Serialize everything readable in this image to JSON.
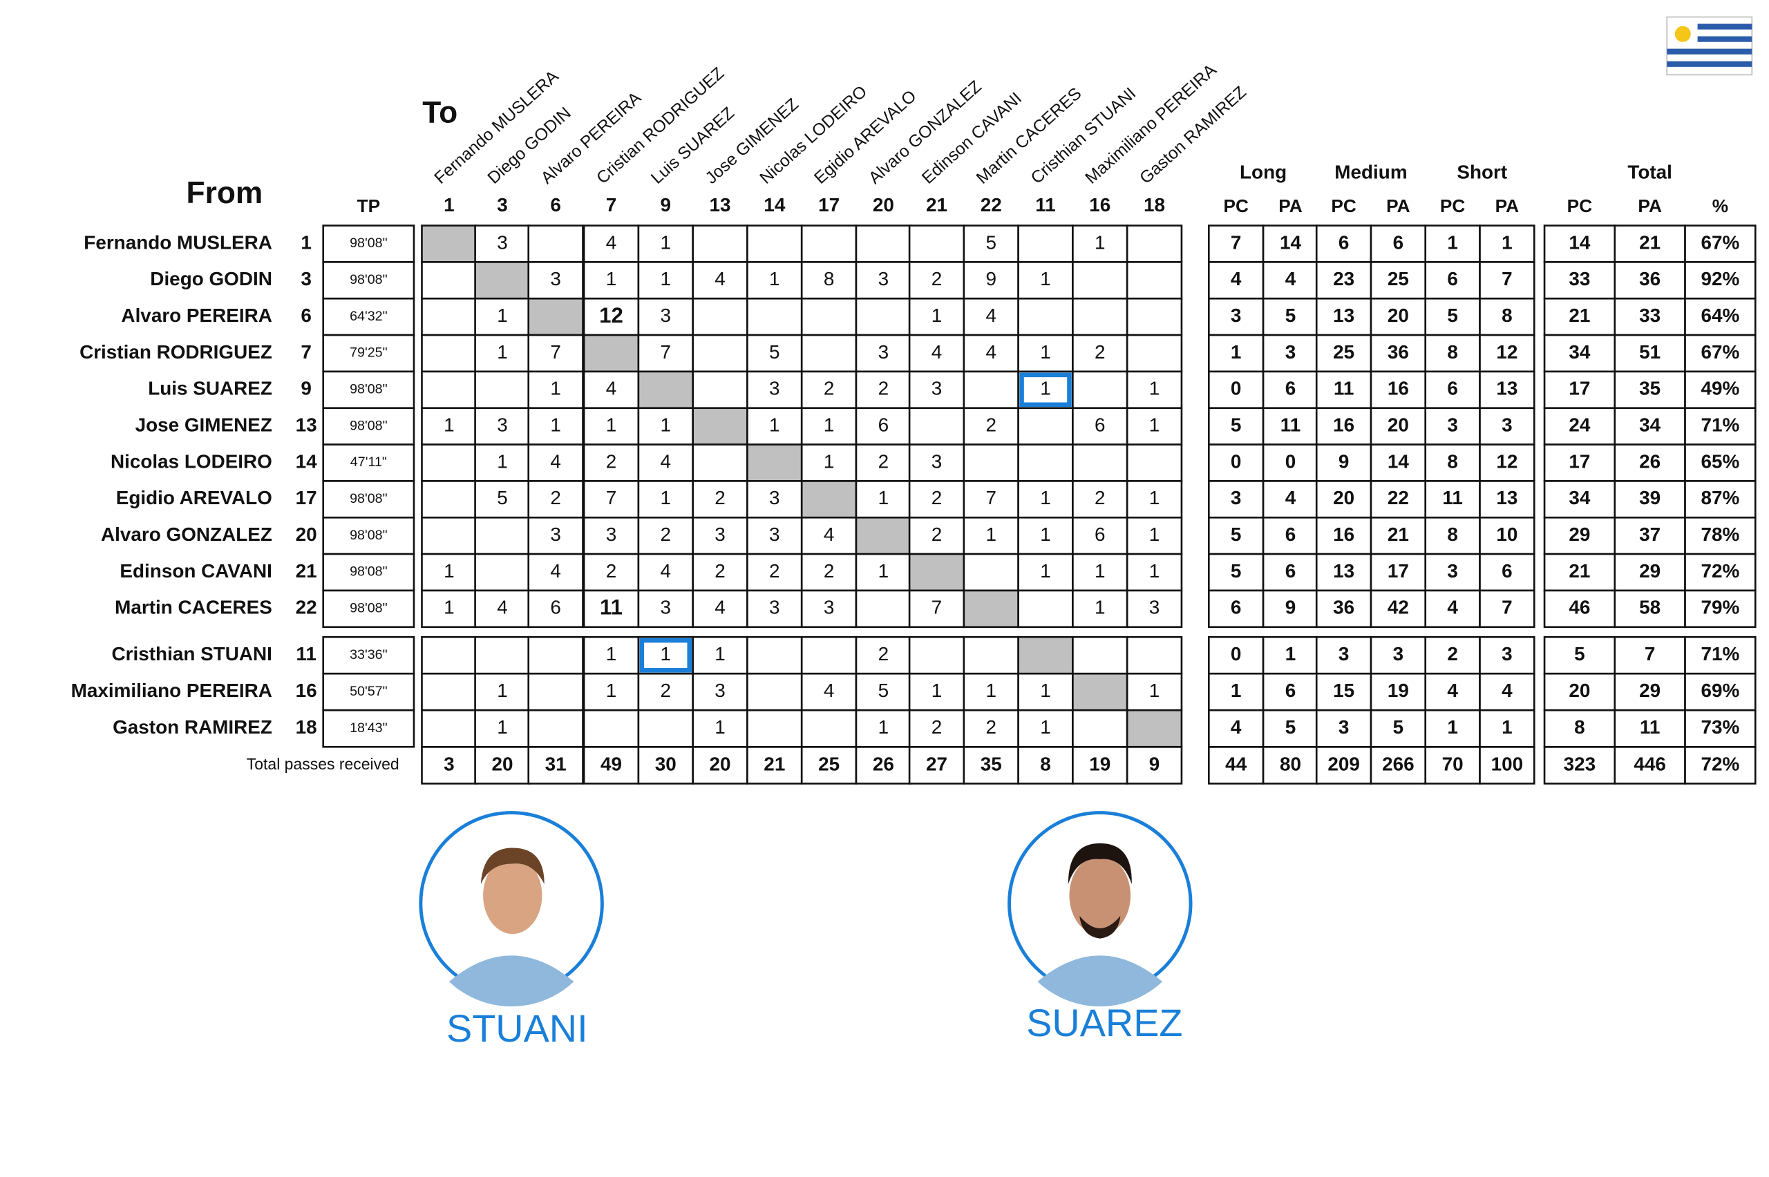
{
  "header": {
    "to_label": "To",
    "from_label": "From",
    "tp_label": "TP",
    "recipients": [
      {
        "name": "Fernando MUSLERA",
        "number": 1
      },
      {
        "name": "Diego GODIN",
        "number": 3
      },
      {
        "name": "Alvaro PEREIRA",
        "number": 6
      },
      {
        "name": "Cristian RODRIGUEZ",
        "number": 7
      },
      {
        "name": "Luis SUAREZ",
        "number": 9
      },
      {
        "name": "Jose GIMENEZ",
        "number": 13
      },
      {
        "name": "Nicolas LODEIRO",
        "number": 14
      },
      {
        "name": "Egidio AREVALO",
        "number": 17
      },
      {
        "name": "Alvaro GONZALEZ",
        "number": 20
      },
      {
        "name": "Edinson CAVANI",
        "number": 21
      },
      {
        "name": "Martin CACERES",
        "number": 22
      },
      {
        "name": "Cristhian STUANI",
        "number": 11
      },
      {
        "name": "Maximiliano PEREIRA",
        "number": 16
      },
      {
        "name": "Gaston RAMIREZ",
        "number": 18
      }
    ],
    "groups": [
      "Long",
      "Medium",
      "Short",
      "Total"
    ],
    "subheaders": [
      "PC",
      "PA",
      "PC",
      "PA",
      "PC",
      "PA",
      "PC",
      "PA",
      "%"
    ]
  },
  "rows": [
    {
      "name": "Fernando MUSLERA",
      "number": 1,
      "tp": "98'08\"",
      "passes": [
        null,
        3,
        null,
        4,
        1,
        null,
        null,
        null,
        null,
        null,
        5,
        null,
        1,
        null
      ],
      "stats": [
        7,
        14,
        6,
        6,
        1,
        1,
        14,
        21,
        "67%"
      ]
    },
    {
      "name": "Diego GODIN",
      "number": 3,
      "tp": "98'08\"",
      "passes": [
        null,
        null,
        3,
        1,
        1,
        4,
        1,
        8,
        3,
        2,
        9,
        1,
        null,
        null
      ],
      "stats": [
        4,
        4,
        23,
        25,
        6,
        7,
        33,
        36,
        "92%"
      ]
    },
    {
      "name": "Alvaro PEREIRA",
      "number": 6,
      "tp": "64'32\"",
      "passes": [
        null,
        1,
        null,
        12,
        3,
        null,
        null,
        null,
        null,
        1,
        4,
        null,
        null,
        null
      ],
      "stats": [
        3,
        5,
        13,
        20,
        5,
        8,
        21,
        33,
        "64%"
      ]
    },
    {
      "name": "Cristian RODRIGUEZ",
      "number": 7,
      "tp": "79'25\"",
      "passes": [
        null,
        1,
        7,
        null,
        7,
        null,
        5,
        null,
        3,
        4,
        4,
        1,
        2,
        null
      ],
      "stats": [
        1,
        3,
        25,
        36,
        8,
        12,
        34,
        51,
        "67%"
      ]
    },
    {
      "name": "Luis SUAREZ",
      "number": 9,
      "tp": "98'08\"",
      "passes": [
        null,
        null,
        1,
        4,
        null,
        null,
        3,
        2,
        2,
        3,
        null,
        1,
        null,
        1
      ],
      "stats": [
        0,
        6,
        11,
        16,
        6,
        13,
        17,
        35,
        "49%"
      ]
    },
    {
      "name": "Jose GIMENEZ",
      "number": 13,
      "tp": "98'08\"",
      "passes": [
        1,
        3,
        1,
        1,
        1,
        null,
        1,
        1,
        6,
        null,
        2,
        null,
        6,
        1
      ],
      "stats": [
        5,
        11,
        16,
        20,
        3,
        3,
        24,
        34,
        "71%"
      ]
    },
    {
      "name": "Nicolas LODEIRO",
      "number": 14,
      "tp": "47'11\"",
      "passes": [
        null,
        1,
        4,
        2,
        4,
        null,
        null,
        1,
        2,
        3,
        null,
        null,
        null,
        null
      ],
      "stats": [
        0,
        0,
        9,
        14,
        8,
        12,
        17,
        26,
        "65%"
      ]
    },
    {
      "name": "Egidio AREVALO",
      "number": 17,
      "tp": "98'08\"",
      "passes": [
        null,
        5,
        2,
        7,
        1,
        2,
        3,
        null,
        1,
        2,
        7,
        1,
        2,
        1
      ],
      "stats": [
        3,
        4,
        20,
        22,
        11,
        13,
        34,
        39,
        "87%"
      ]
    },
    {
      "name": "Alvaro GONZALEZ",
      "number": 20,
      "tp": "98'08\"",
      "passes": [
        null,
        null,
        3,
        3,
        2,
        3,
        3,
        4,
        null,
        2,
        1,
        1,
        6,
        1
      ],
      "stats": [
        5,
        6,
        16,
        21,
        8,
        10,
        29,
        37,
        "78%"
      ]
    },
    {
      "name": "Edinson CAVANI",
      "number": 21,
      "tp": "98'08\"",
      "passes": [
        1,
        null,
        4,
        2,
        4,
        2,
        2,
        2,
        1,
        null,
        null,
        1,
        1,
        1
      ],
      "stats": [
        5,
        6,
        13,
        17,
        3,
        6,
        21,
        29,
        "72%"
      ]
    },
    {
      "name": "Martin CACERES",
      "number": 22,
      "tp": "98'08\"",
      "passes": [
        1,
        4,
        6,
        11,
        3,
        4,
        3,
        3,
        null,
        7,
        null,
        null,
        1,
        3
      ],
      "stats": [
        6,
        9,
        36,
        42,
        4,
        7,
        46,
        58,
        "79%"
      ]
    },
    {
      "name": "Cristhian STUANI",
      "number": 11,
      "tp": "33'36\"",
      "passes": [
        null,
        null,
        null,
        1,
        1,
        1,
        null,
        null,
        2,
        null,
        null,
        null,
        null,
        null
      ],
      "stats": [
        0,
        1,
        3,
        3,
        2,
        3,
        5,
        7,
        "71%"
      ]
    },
    {
      "name": "Maximiliano PEREIRA",
      "number": 16,
      "tp": "50'57\"",
      "passes": [
        null,
        1,
        null,
        1,
        2,
        3,
        null,
        4,
        5,
        1,
        1,
        1,
        null,
        1
      ],
      "stats": [
        1,
        6,
        15,
        19,
        4,
        4,
        20,
        29,
        "69%"
      ]
    },
    {
      "name": "Gaston RAMIREZ",
      "number": 18,
      "tp": "18'43\"",
      "passes": [
        null,
        1,
        null,
        null,
        null,
        1,
        null,
        null,
        1,
        2,
        2,
        1,
        null,
        null
      ],
      "stats": [
        4,
        5,
        3,
        5,
        1,
        1,
        8,
        11,
        "73%"
      ]
    }
  ],
  "totals": {
    "label": "Total passes received",
    "passes": [
      3,
      20,
      31,
      49,
      30,
      20,
      21,
      25,
      26,
      27,
      35,
      8,
      19,
      9
    ],
    "stats": [
      44,
      80,
      209,
      266,
      70,
      100,
      323,
      446,
      "72%"
    ]
  },
  "captions": [
    "STUANI",
    "SUAREZ"
  ]
}
